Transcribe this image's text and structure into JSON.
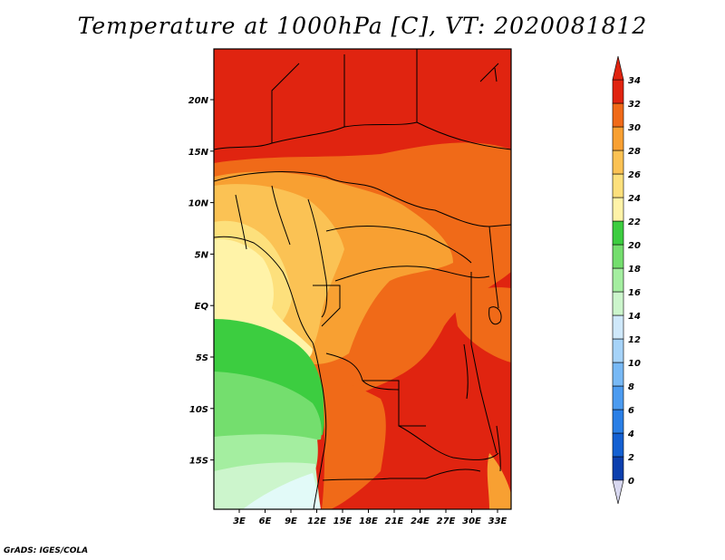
{
  "title": "Temperature at 1000hPa [C], VT: 2020081812",
  "credit": "GrADS: IGES/COLA",
  "axes": {
    "lat_ticks": [
      "20N",
      "15N",
      "10N",
      "5N",
      "EQ",
      "5S",
      "10S",
      "15S"
    ],
    "lon_ticks": [
      "3E",
      "6E",
      "9E",
      "12E",
      "15E",
      "18E",
      "21E",
      "24E",
      "27E",
      "30E",
      "33E"
    ]
  },
  "colorbar": {
    "labels": [
      "0",
      "2",
      "4",
      "6",
      "8",
      "10",
      "12",
      "14",
      "16",
      "18",
      "20",
      "22",
      "24",
      "26",
      "28",
      "30",
      "32",
      "34"
    ],
    "colors": [
      "#0a0a78",
      "#0c3fae",
      "#1460d2",
      "#2a7fe6",
      "#4c9bf0",
      "#78b9f5",
      "#a6d3f8",
      "#cfe8fa",
      "#ccf5cc",
      "#a4eea0",
      "#74de6e",
      "#3ccd40",
      "#fff3a8",
      "#fde07c",
      "#fbc254",
      "#f8a032",
      "#f06a18",
      "#e02410"
    ],
    "under_color": "#d8d8f0",
    "over_color": "#e02410"
  }
}
